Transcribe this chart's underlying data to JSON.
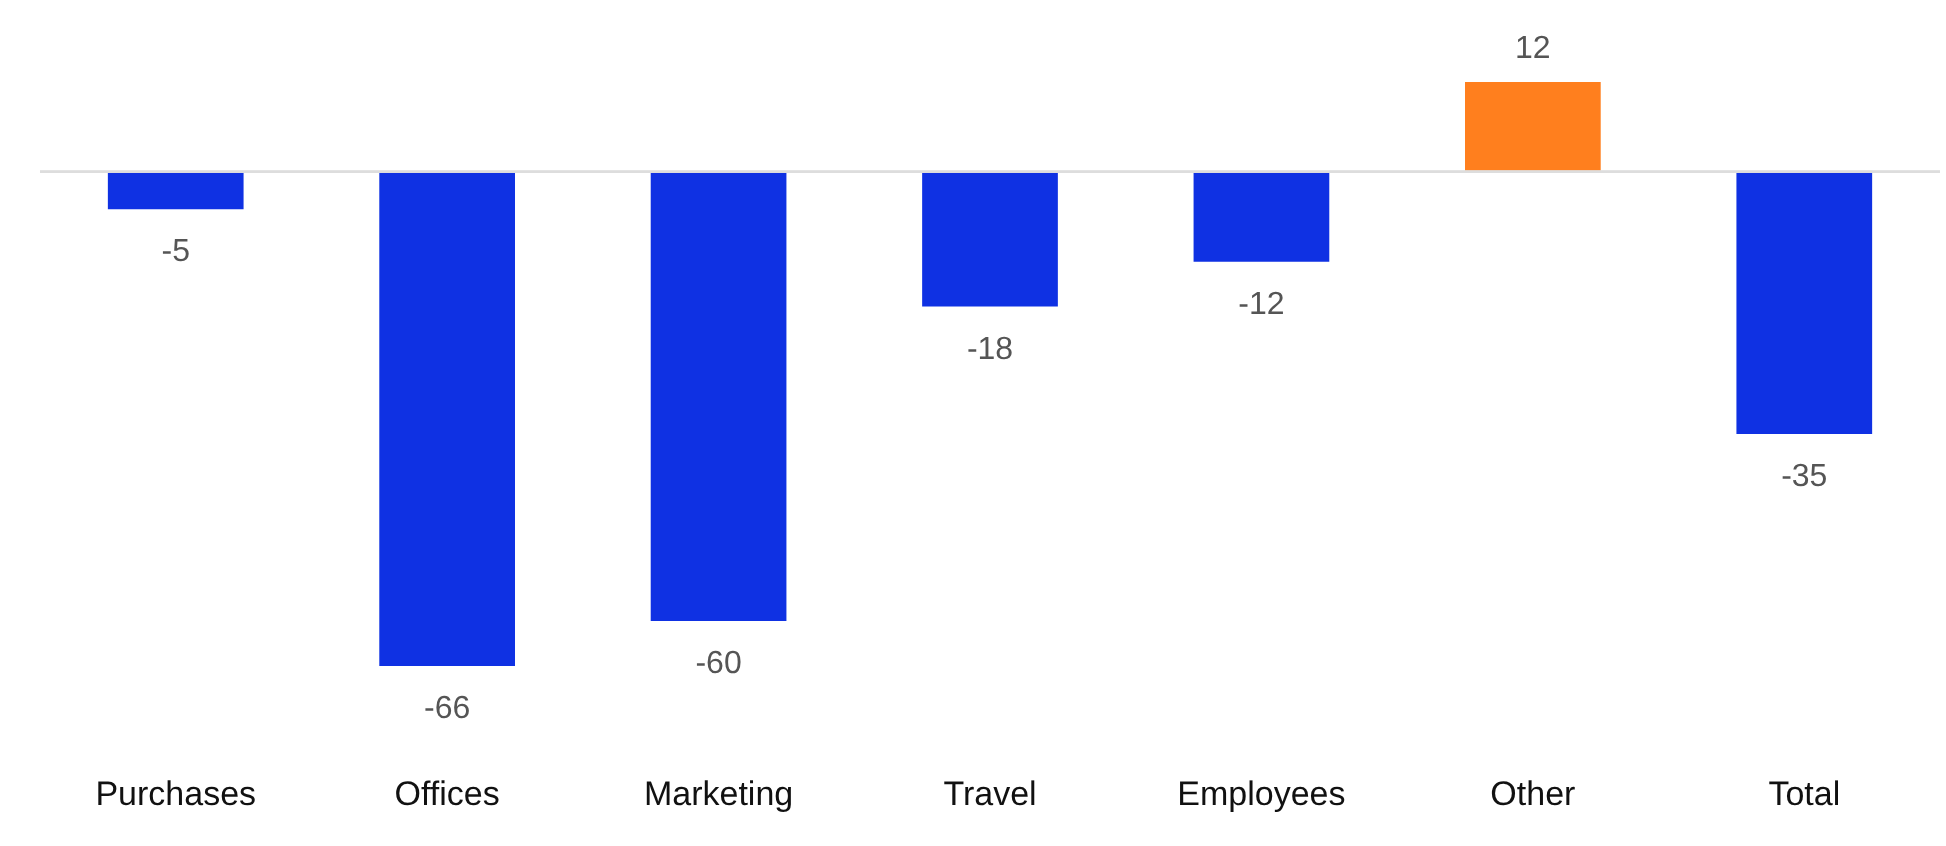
{
  "chart_data": {
    "type": "bar",
    "categories": [
      "Purchases",
      "Offices",
      "Marketing",
      "Travel",
      "Employees",
      "Other",
      "Total"
    ],
    "values": [
      -5,
      -66,
      -60,
      -18,
      -12,
      12,
      -35
    ],
    "colors": [
      "#0f31e3",
      "#0f31e3",
      "#0f31e3",
      "#0f31e3",
      "#0f31e3",
      "#ff7f1e",
      "#0f31e3"
    ],
    "data_labels": true
  }
}
